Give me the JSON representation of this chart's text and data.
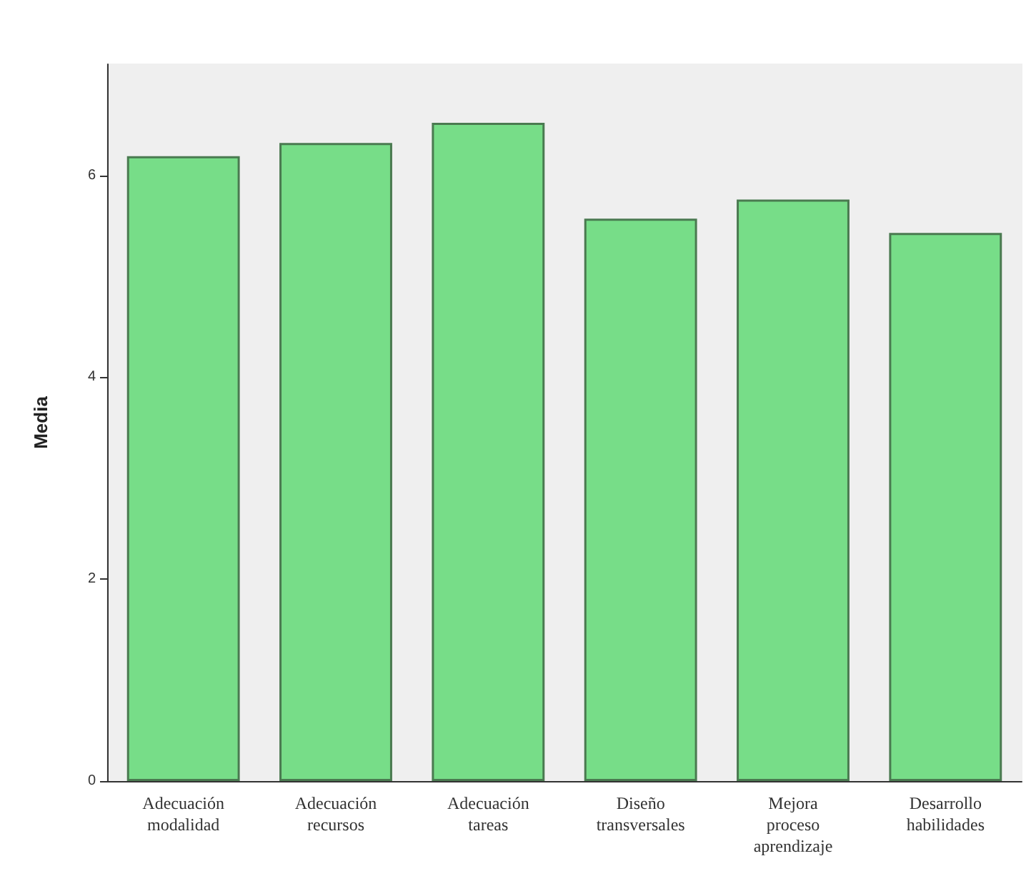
{
  "chart_data": {
    "type": "bar",
    "ylabel": "Media",
    "categories": [
      "Adecuación\nmodalidad",
      "Adecuación\nrecursos",
      "Adecuación\ntareas",
      "Diseño\ntransversales",
      "Mejora\nproceso\naprendizaje",
      "Desarrollo\nhabilidades"
    ],
    "values": [
      6.19,
      6.32,
      6.52,
      5.57,
      5.76,
      5.43
    ],
    "color": "#77dd88",
    "ylim": [
      0,
      7.1
    ],
    "yticks": [
      0,
      2,
      4,
      6
    ],
    "grid": false
  }
}
